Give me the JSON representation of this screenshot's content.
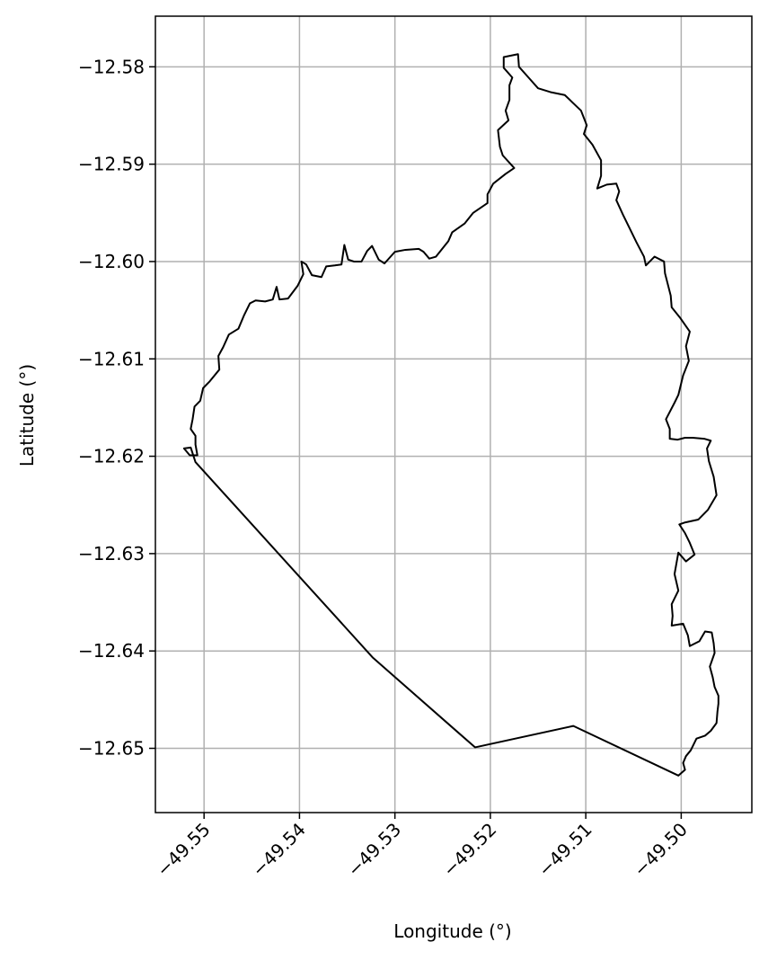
{
  "chart_data": {
    "type": "line",
    "title": "",
    "xlabel": "Longitude (°)",
    "ylabel": "Latitude (°)",
    "xlim": [
      -49.5551,
      -49.4926
    ],
    "ylim": [
      -12.6566,
      -12.5748
    ],
    "xticks": [
      -49.55,
      -49.54,
      -49.53,
      -49.52,
      -49.51,
      -49.5
    ],
    "xtick_labels": [
      "−49.55",
      "−49.54",
      "−49.53",
      "−49.52",
      "−49.51",
      "−49.50"
    ],
    "yticks": [
      -12.58,
      -12.59,
      -12.6,
      -12.61,
      -12.62,
      -12.63,
      -12.64,
      -12.65
    ],
    "ytick_labels": [
      "−12.58",
      "−12.59",
      "−12.60",
      "−12.61",
      "−12.62",
      "−12.63",
      "−12.64",
      "−12.65"
    ],
    "grid": true,
    "colors": {
      "outline": "#000000",
      "grid": "#b0b0b0",
      "frame": "#000000"
    },
    "series": [
      {
        "points": [
          [
            -49.5514,
            -12.6191
          ],
          [
            -49.5521,
            -12.6192
          ],
          [
            -49.5515,
            -12.6199
          ],
          [
            -49.5507,
            -12.6199
          ],
          [
            -49.5509,
            -12.6188
          ],
          [
            -49.5509,
            -12.6179
          ],
          [
            -49.5514,
            -12.6172
          ],
          [
            -49.5512,
            -12.6162
          ],
          [
            -49.551,
            -12.6149
          ],
          [
            -49.5504,
            -12.6143
          ],
          [
            -49.5501,
            -12.613
          ],
          [
            -49.5494,
            -12.6123
          ],
          [
            -49.5484,
            -12.6111
          ],
          [
            -49.5485,
            -12.6097
          ],
          [
            -49.548,
            -12.6088
          ],
          [
            -49.5474,
            -12.6075
          ],
          [
            -49.5464,
            -12.6069
          ],
          [
            -49.5458,
            -12.6055
          ],
          [
            -49.5452,
            -12.6043
          ],
          [
            -49.5446,
            -12.604
          ],
          [
            -49.5436,
            -12.6041
          ],
          [
            -49.5428,
            -12.6039
          ],
          [
            -49.5424,
            -12.6026
          ],
          [
            -49.5421,
            -12.6039
          ],
          [
            -49.5412,
            -12.6038
          ],
          [
            -49.5402,
            -12.6025
          ],
          [
            -49.5396,
            -12.6013
          ],
          [
            -49.5398,
            -12.6
          ],
          [
            -49.5393,
            -12.6003
          ],
          [
            -49.5387,
            -12.6014
          ],
          [
            -49.5377,
            -12.6016
          ],
          [
            -49.5372,
            -12.6005
          ],
          [
            -49.5363,
            -12.6004
          ],
          [
            -49.5356,
            -12.6003
          ],
          [
            -49.5353,
            -12.5983
          ],
          [
            -49.5349,
            -12.5998
          ],
          [
            -49.5343,
            -12.6
          ],
          [
            -49.5335,
            -12.6
          ],
          [
            -49.5329,
            -12.5989
          ],
          [
            -49.5324,
            -12.5984
          ],
          [
            -49.5317,
            -12.5998
          ],
          [
            -49.5311,
            -12.6002
          ],
          [
            -49.53,
            -12.599
          ],
          [
            -49.5289,
            -12.5988
          ],
          [
            -49.5275,
            -12.5987
          ],
          [
            -49.527,
            -12.599
          ],
          [
            -49.5264,
            -12.5997
          ],
          [
            -49.5257,
            -12.5995
          ],
          [
            -49.5244,
            -12.5979
          ],
          [
            -49.524,
            -12.597
          ],
          [
            -49.5227,
            -12.5961
          ],
          [
            -49.5218,
            -12.595
          ],
          [
            -49.5203,
            -12.594
          ],
          [
            -49.5203,
            -12.5931
          ],
          [
            -49.5197,
            -12.592
          ],
          [
            -49.5184,
            -12.591
          ],
          [
            -49.5175,
            -12.5904
          ],
          [
            -49.5187,
            -12.5891
          ],
          [
            -49.519,
            -12.5882
          ],
          [
            -49.5192,
            -12.5865
          ],
          [
            -49.5181,
            -12.5855
          ],
          [
            -49.5184,
            -12.5845
          ],
          [
            -49.518,
            -12.5834
          ],
          [
            -49.518,
            -12.5819
          ],
          [
            -49.5177,
            -12.5811
          ],
          [
            -49.5186,
            -12.5801
          ],
          [
            -49.5186,
            -12.579
          ],
          [
            -49.5171,
            -12.5787
          ],
          [
            -49.517,
            -12.58
          ],
          [
            -49.516,
            -12.5811
          ],
          [
            -49.515,
            -12.5822
          ],
          [
            -49.5137,
            -12.5826
          ],
          [
            -49.5122,
            -12.5829
          ],
          [
            -49.5105,
            -12.5845
          ],
          [
            -49.5099,
            -12.586
          ],
          [
            -49.5102,
            -12.5869
          ],
          [
            -49.5093,
            -12.588
          ],
          [
            -49.5084,
            -12.5896
          ],
          [
            -49.5084,
            -12.5912
          ],
          [
            -49.5088,
            -12.5925
          ],
          [
            -49.5078,
            -12.5921
          ],
          [
            -49.5068,
            -12.592
          ],
          [
            -49.5065,
            -12.5928
          ],
          [
            -49.5068,
            -12.5937
          ],
          [
            -49.5061,
            -12.5952
          ],
          [
            -49.5054,
            -12.5966
          ],
          [
            -49.5047,
            -12.598
          ],
          [
            -49.5039,
            -12.5995
          ],
          [
            -49.5037,
            -12.6004
          ],
          [
            -49.5028,
            -12.5995
          ],
          [
            -49.5018,
            -12.6
          ],
          [
            -49.5017,
            -12.6012
          ],
          [
            -49.5011,
            -12.6035
          ],
          [
            -49.501,
            -12.6047
          ],
          [
            -49.5001,
            -12.6058
          ],
          [
            -49.4991,
            -12.6072
          ],
          [
            -49.4995,
            -12.6087
          ],
          [
            -49.4992,
            -12.6102
          ],
          [
            -49.4998,
            -12.6117
          ],
          [
            -49.5003,
            -12.6137
          ],
          [
            -49.5007,
            -12.6145
          ],
          [
            -49.5016,
            -12.6162
          ],
          [
            -49.5012,
            -12.6172
          ],
          [
            -49.5012,
            -12.6182
          ],
          [
            -49.5004,
            -12.6183
          ],
          [
            -49.4996,
            -12.6181
          ],
          [
            -49.4988,
            -12.6181
          ],
          [
            -49.4976,
            -12.6182
          ],
          [
            -49.4969,
            -12.6184
          ],
          [
            -49.4973,
            -12.6192
          ],
          [
            -49.4971,
            -12.6205
          ],
          [
            -49.4966,
            -12.6221
          ],
          [
            -49.4963,
            -12.624
          ],
          [
            -49.4972,
            -12.6255
          ],
          [
            -49.4982,
            -12.6265
          ],
          [
            -49.4996,
            -12.6268
          ],
          [
            -49.5002,
            -12.627
          ],
          [
            -49.4996,
            -12.6279
          ],
          [
            -49.4991,
            -12.6289
          ],
          [
            -49.4986,
            -12.6301
          ],
          [
            -49.4995,
            -12.6308
          ],
          [
            -49.5003,
            -12.6299
          ],
          [
            -49.5007,
            -12.6321
          ],
          [
            -49.5003,
            -12.6338
          ],
          [
            -49.501,
            -12.6352
          ],
          [
            -49.5009,
            -12.6364
          ],
          [
            -49.501,
            -12.6374
          ],
          [
            -49.4998,
            -12.6372
          ],
          [
            -49.4993,
            -12.6384
          ],
          [
            -49.4991,
            -12.6395
          ],
          [
            -49.4981,
            -12.639
          ],
          [
            -49.4975,
            -12.638
          ],
          [
            -49.4968,
            -12.6381
          ],
          [
            -49.4966,
            -12.6392
          ],
          [
            -49.4965,
            -12.6402
          ],
          [
            -49.497,
            -12.6416
          ],
          [
            -49.4967,
            -12.6427
          ],
          [
            -49.4965,
            -12.6437
          ],
          [
            -49.4961,
            -12.6446
          ],
          [
            -49.4961,
            -12.6454
          ],
          [
            -49.4962,
            -12.6462
          ],
          [
            -49.4963,
            -12.6474
          ],
          [
            -49.4969,
            -12.6482
          ],
          [
            -49.4975,
            -12.6487
          ],
          [
            -49.4984,
            -12.649
          ],
          [
            -49.499,
            -12.6502
          ],
          [
            -49.4995,
            -12.6508
          ],
          [
            -49.4998,
            -12.6515
          ],
          [
            -49.4996,
            -12.6522
          ],
          [
            -49.5003,
            -12.6528
          ],
          [
            -49.5113,
            -12.6477
          ],
          [
            -49.5216,
            -12.6499
          ],
          [
            -49.5323,
            -12.6407
          ],
          [
            -49.5509,
            -12.6206
          ],
          [
            -49.5514,
            -12.6191
          ]
        ]
      }
    ]
  }
}
